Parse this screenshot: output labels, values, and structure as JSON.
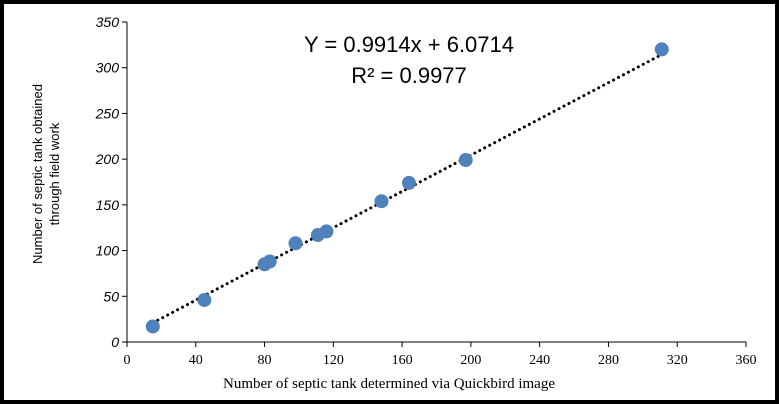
{
  "chart_data": {
    "type": "scatter",
    "xlabel": "Number of septic tank determined via Quickbird image",
    "ylabel_lines": [
      "Number of septic tank obtained",
      "through field work"
    ],
    "xlim": [
      0,
      360
    ],
    "ylim": [
      0,
      350
    ],
    "x_ticks": [
      "0",
      "40",
      "80",
      "120",
      "160",
      "200",
      "240",
      "280",
      "320",
      "360"
    ],
    "y_ticks": [
      "0",
      "50",
      "100",
      "150",
      "200",
      "250",
      "300",
      "350"
    ],
    "x_tick_values": [
      0,
      40,
      80,
      120,
      160,
      200,
      240,
      280,
      320,
      360
    ],
    "y_tick_values": [
      0,
      50,
      100,
      150,
      200,
      250,
      300,
      350
    ],
    "points": [
      {
        "x": 15,
        "y": 17
      },
      {
        "x": 45,
        "y": 46
      },
      {
        "x": 80,
        "y": 85
      },
      {
        "x": 83,
        "y": 88
      },
      {
        "x": 98,
        "y": 108
      },
      {
        "x": 111,
        "y": 117
      },
      {
        "x": 116,
        "y": 121
      },
      {
        "x": 148,
        "y": 154
      },
      {
        "x": 164,
        "y": 174
      },
      {
        "x": 197,
        "y": 199
      },
      {
        "x": 311,
        "y": 320
      }
    ],
    "trendline": {
      "slope": 0.9914,
      "intercept": 6.0714,
      "x_range": [
        15,
        311
      ]
    },
    "equation_text": "Y = 0.9914x + 6.0714",
    "r2_text": "R² = 0.9977",
    "marker_color": "#4f81bd",
    "trendline_color": "#000000",
    "grid": false
  }
}
